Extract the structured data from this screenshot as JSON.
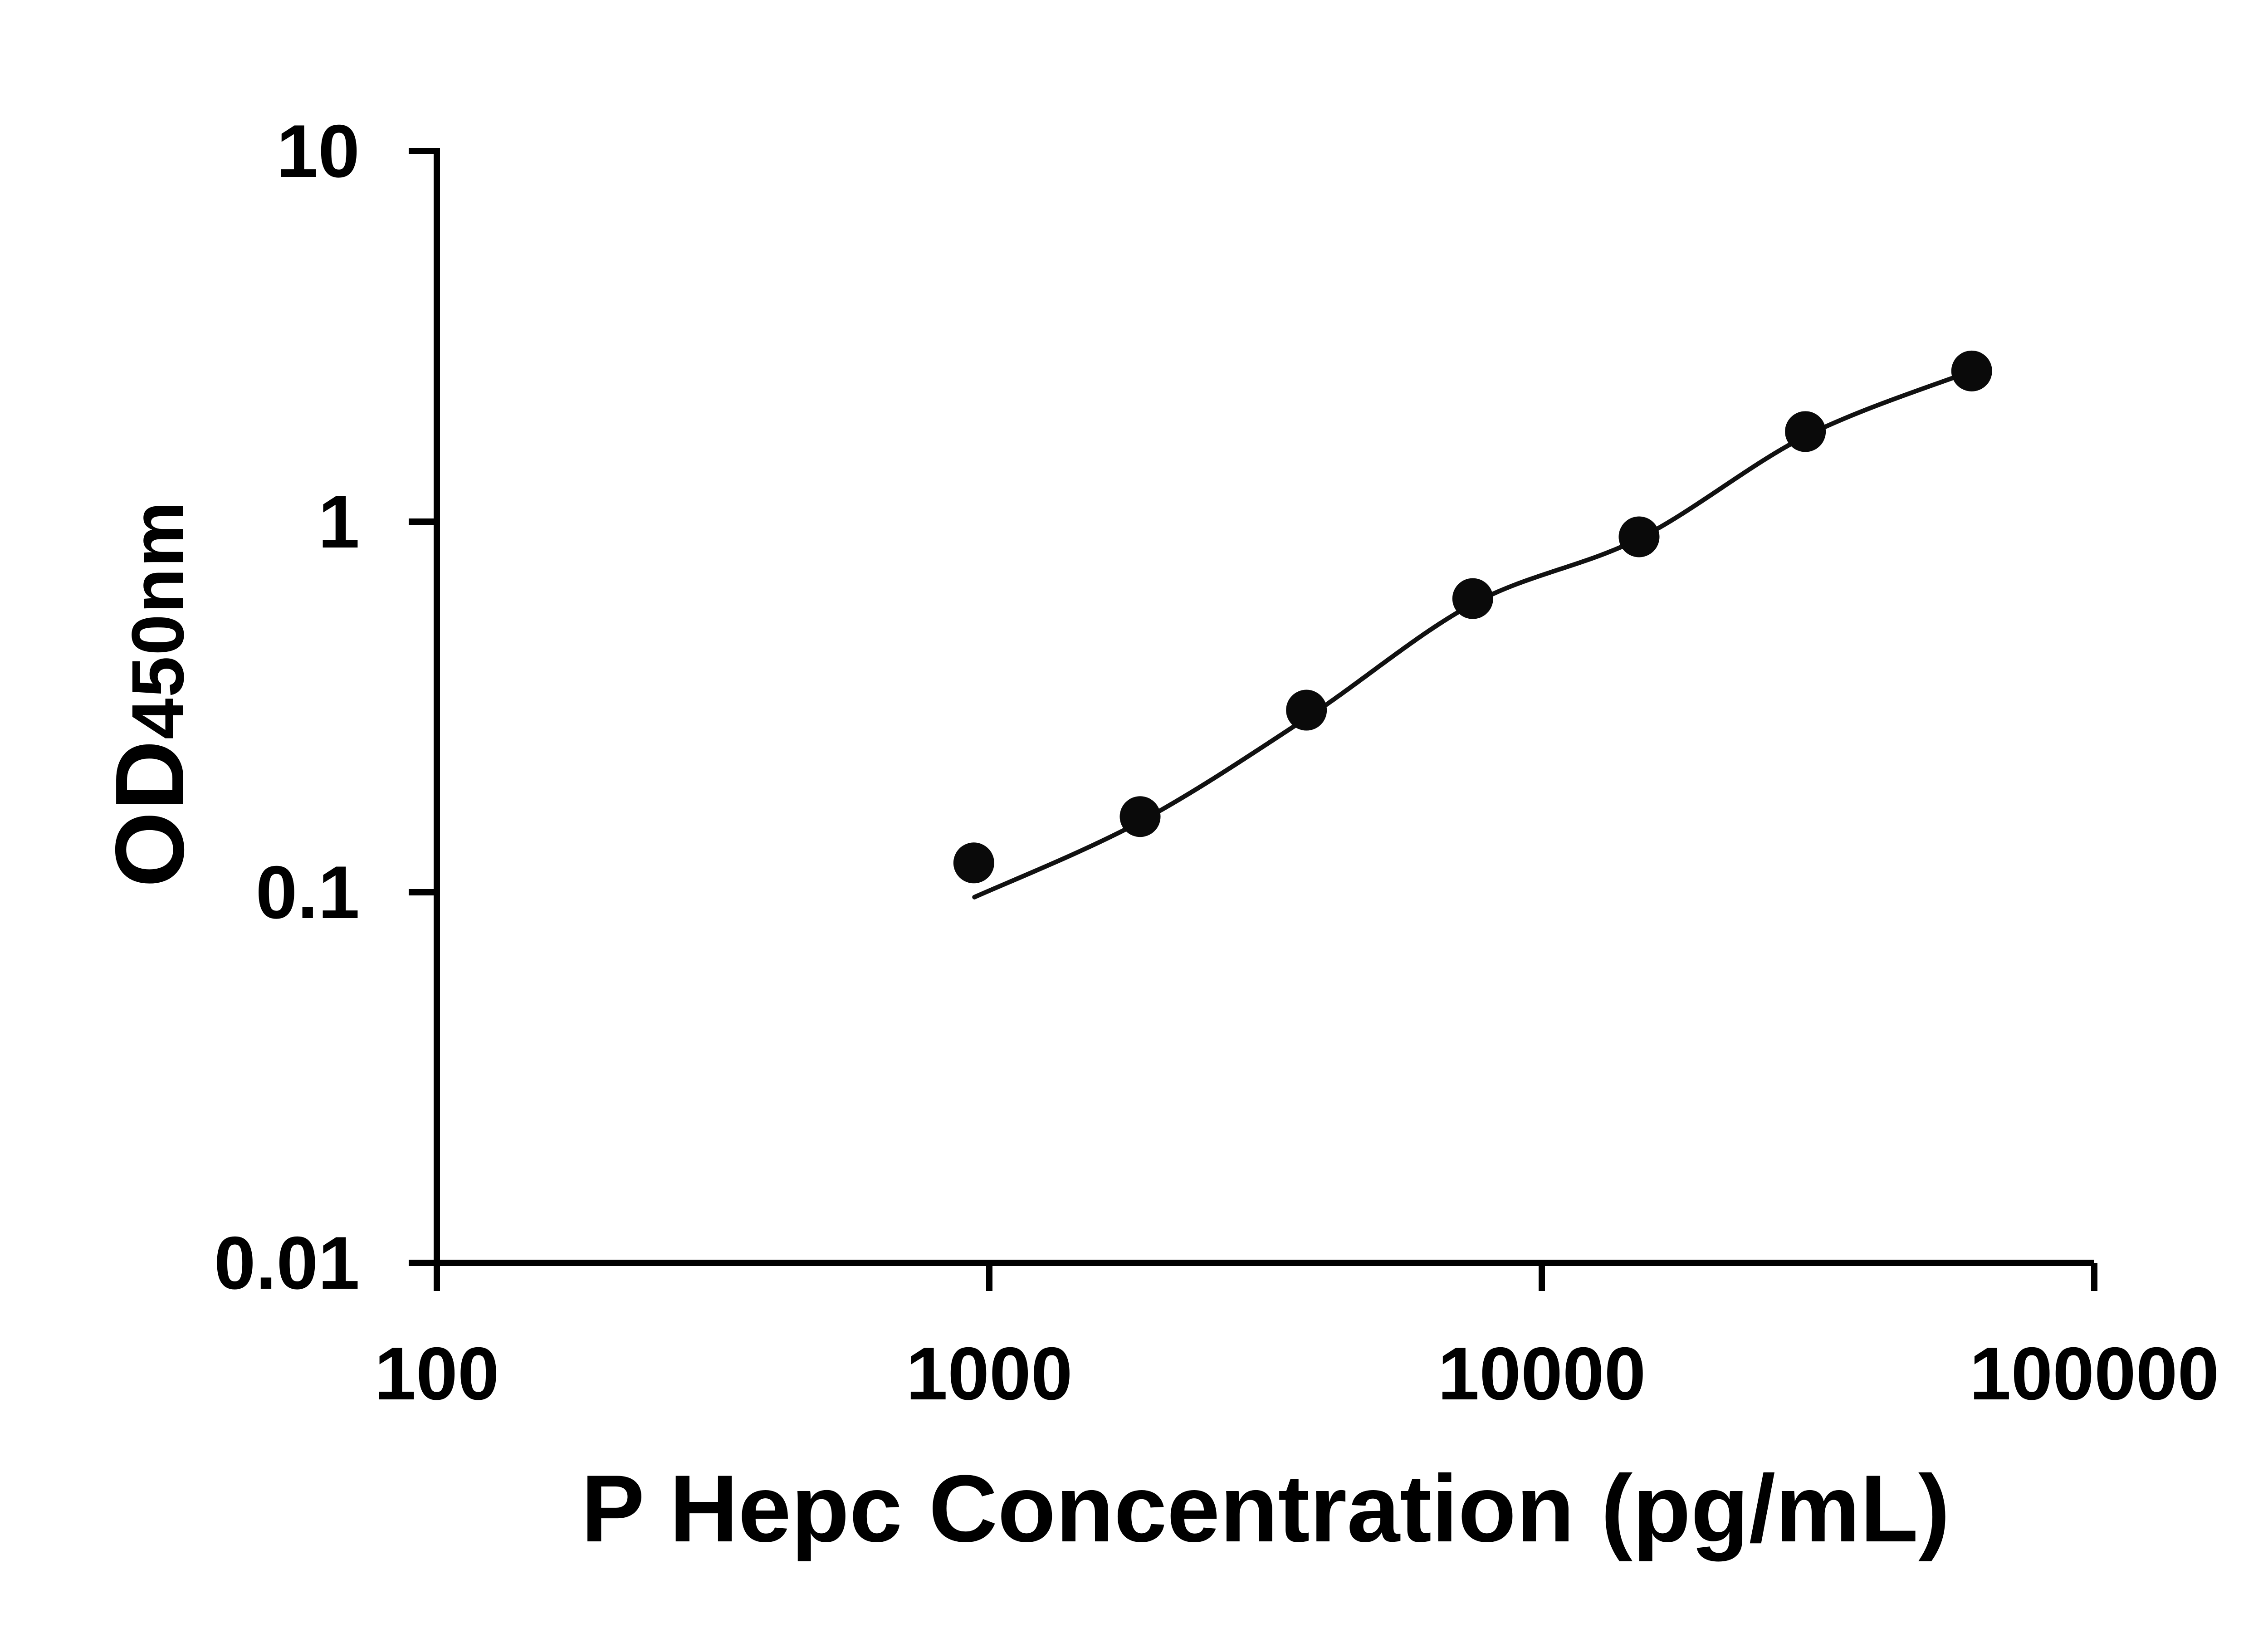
{
  "page": {
    "background": "#ffffff"
  },
  "chart_data": {
    "type": "scatter",
    "title": "",
    "xlabel": "P Hepc Concentration (pg/mL)",
    "ylabel": "OD",
    "ylabel_sub": "450nm",
    "x_scale": "log10",
    "y_scale": "log10",
    "xlim": [
      100,
      100000
    ],
    "ylim": [
      0.01,
      10
    ],
    "x_ticks": [
      100,
      1000,
      10000,
      100000
    ],
    "x_tick_labels": [
      "100",
      "1000",
      "10000",
      "100000"
    ],
    "y_ticks": [
      0.01,
      0.1,
      1,
      10
    ],
    "y_tick_labels": [
      "0.01",
      "0.1",
      "1",
      "10"
    ],
    "grid": false,
    "legend": false,
    "points": [
      {
        "x": 937.5,
        "y": 0.12
      },
      {
        "x": 1875,
        "y": 0.16
      },
      {
        "x": 3750,
        "y": 0.31
      },
      {
        "x": 7500,
        "y": 0.62
      },
      {
        "x": 15000,
        "y": 0.91
      },
      {
        "x": 30000,
        "y": 1.75
      },
      {
        "x": 60000,
        "y": 2.55
      }
    ],
    "fit_curve": [
      {
        "x": 940,
        "y": 0.097
      },
      {
        "x": 1875,
        "y": 0.155
      },
      {
        "x": 3750,
        "y": 0.295
      },
      {
        "x": 7500,
        "y": 0.6
      },
      {
        "x": 15000,
        "y": 0.9
      },
      {
        "x": 30000,
        "y": 1.7
      },
      {
        "x": 60000,
        "y": 2.55
      }
    ],
    "axis_color": "#000000",
    "line_color": "#111111",
    "marker_color": "#0a0a0a",
    "background": "#ffffff"
  }
}
